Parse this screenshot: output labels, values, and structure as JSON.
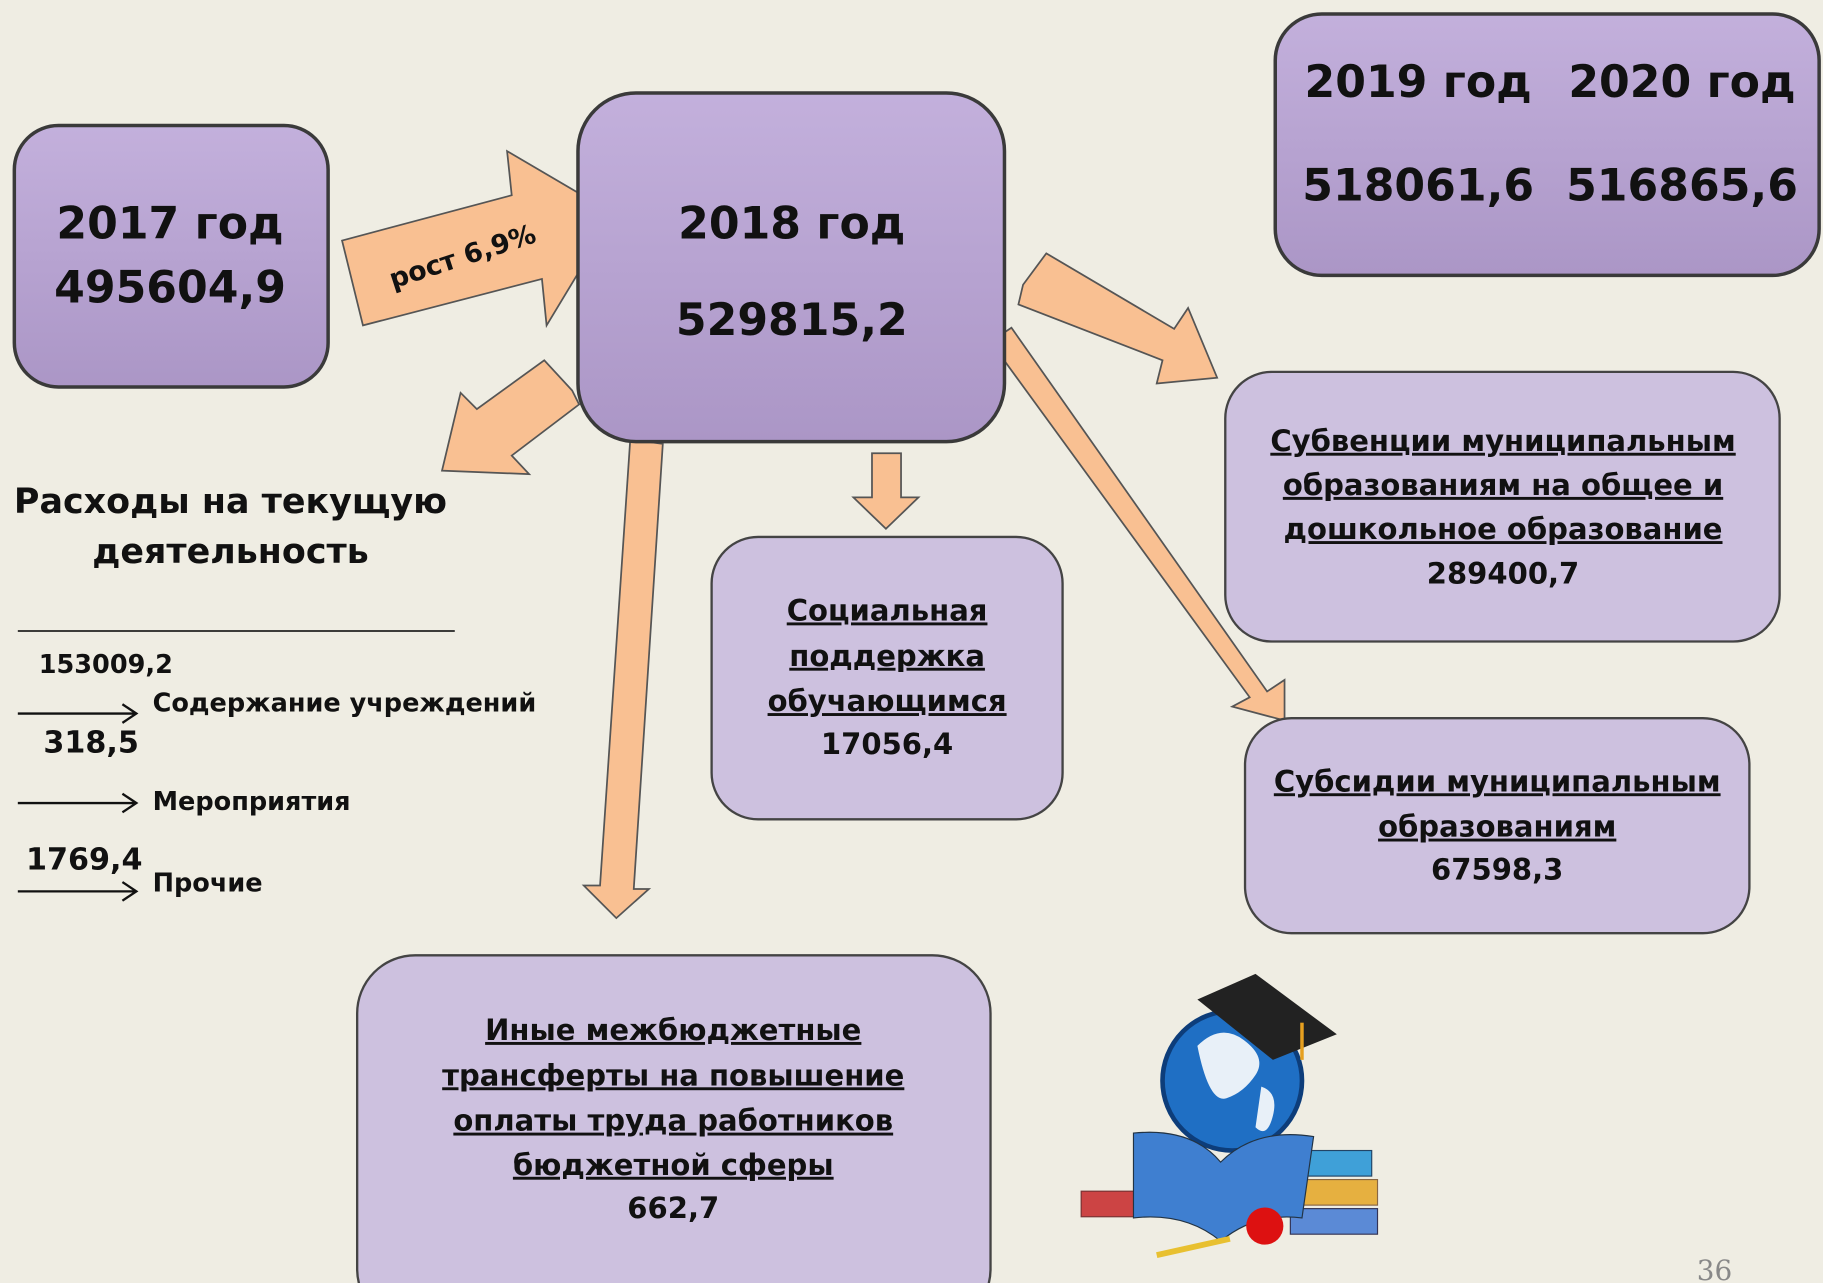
{
  "year2017": {
    "label": "2017 год",
    "value": "495604,9"
  },
  "growth": "рост 6,9%",
  "year2018": {
    "label": "2018 год",
    "value": "529815,2"
  },
  "forecast": [
    {
      "label": "2019 год",
      "value": "518061,6"
    },
    {
      "label": "2020 год",
      "value": "516865,6"
    }
  ],
  "current_expenses": {
    "title": [
      "Расходы на текущую",
      "деятельность"
    ],
    "items": [
      {
        "value": "153009,2",
        "label": "Содержание учреждений"
      },
      {
        "value": "318,5",
        "label": "Мероприятия"
      },
      {
        "value": "1769,4",
        "label": "Прочие"
      }
    ]
  },
  "subventions": {
    "lines": [
      "Субвенции муниципальным",
      "образованиям на общее и",
      "дошкольное образование"
    ],
    "value": "289400,7"
  },
  "social_support": {
    "lines": [
      "Социальная",
      "поддержка",
      "обучающимся"
    ],
    "value": "17056,4"
  },
  "subsidies": {
    "lines": [
      "Субсидии муниципальным",
      "образованиям"
    ],
    "value": "67598,3"
  },
  "other_transfers": {
    "lines": [
      "Иные межбюджетные",
      "трансферты на повышение",
      "оплаты труда работников",
      "бюджетной сферы"
    ],
    "value": "662,7"
  },
  "page_number": "36"
}
